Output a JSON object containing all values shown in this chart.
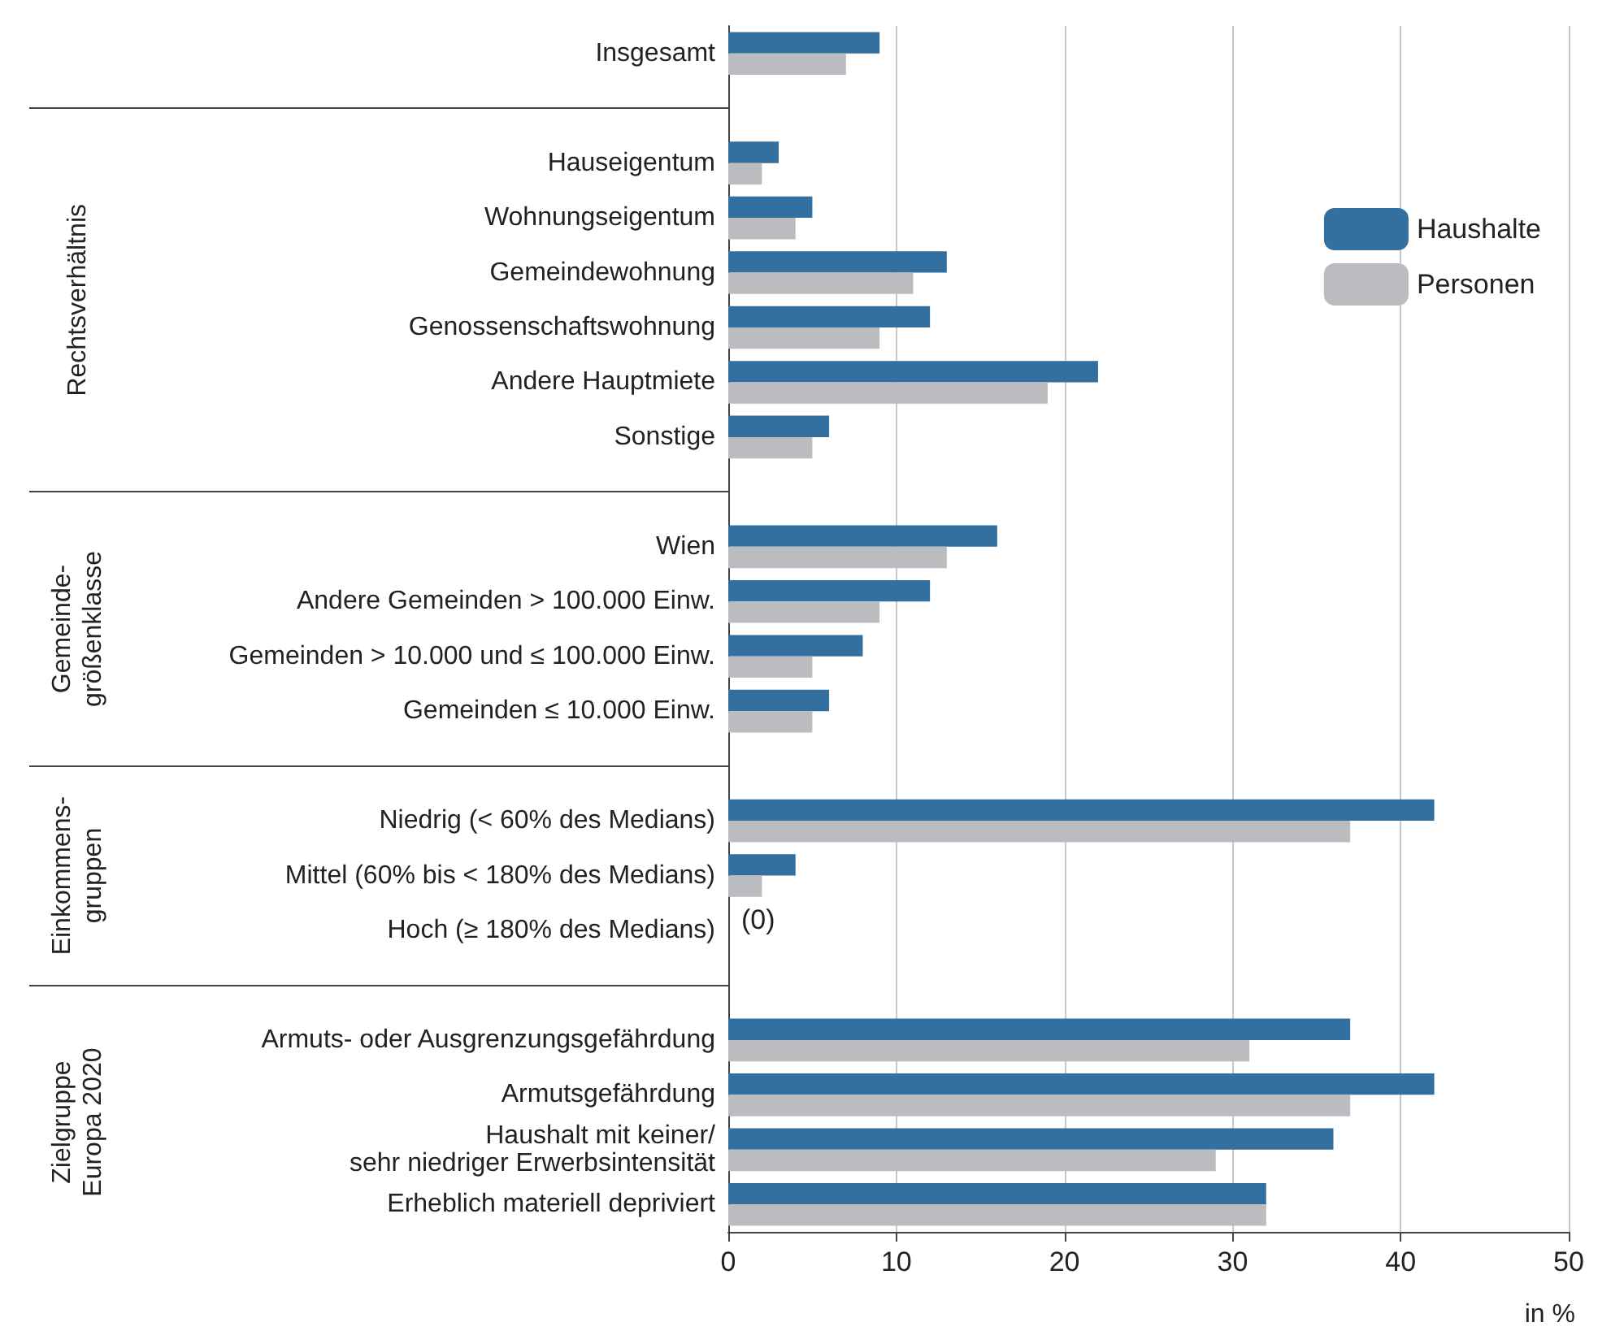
{
  "chart_data": {
    "type": "bar",
    "orientation": "horizontal",
    "xlabel": "in %",
    "categories": [
      "Insgesamt",
      null,
      "Hauseigentum",
      "Wohnungseigentum",
      "Gemeindewohnung",
      "Genossenschaftswohnung",
      "Andere Hauptmiete",
      "Sonstige",
      null,
      "Wien",
      "Andere Gemeinden > 100.000 Einw.",
      "Gemeinden > 10.000 und ≤ 100.000 Einw.",
      "Gemeinden ≤ 10.000 Einw.",
      null,
      "Niedrig (< 60% des Medians)",
      "Mittel (60% bis < 180% des Medians)",
      "Hoch (≥ 180% des Medians)",
      null,
      "Armuts- oder Ausgrenzungsgefährdung",
      "Armutsgefährdung",
      "Haushalt mit keiner/\nsehr niedriger Erwerbsintensität",
      "Erheblich materiell depriviert"
    ],
    "series": [
      {
        "name": "Haushalte",
        "color": "#33709f",
        "values": [
          9,
          null,
          3,
          5,
          13,
          12,
          22,
          6,
          null,
          16,
          12,
          8,
          6,
          null,
          42,
          4,
          0,
          null,
          37,
          42,
          36,
          32
        ],
        "value_labels": [
          null,
          null,
          null,
          null,
          null,
          null,
          null,
          null,
          null,
          null,
          null,
          null,
          null,
          null,
          null,
          null,
          "(0)",
          null,
          null,
          null,
          null,
          null
        ]
      },
      {
        "name": "Personen",
        "color": "#bbbcc0",
        "values": [
          7,
          null,
          2,
          4,
          11,
          9,
          19,
          5,
          null,
          13,
          9,
          5,
          5,
          null,
          37,
          2,
          0,
          null,
          31,
          37,
          29,
          32
        ]
      }
    ],
    "annotations": [
      "Rechtsverhältnis",
      "Gemeinde-\ngrößenklasse",
      "Einkommens-\ngruppen",
      "Zielgruppe\nEuropa 2020"
    ],
    "xlim": [
      0,
      50
    ],
    "xticks": [
      0,
      10,
      20,
      30,
      40,
      50
    ],
    "grid": "x",
    "legend": "top right"
  }
}
